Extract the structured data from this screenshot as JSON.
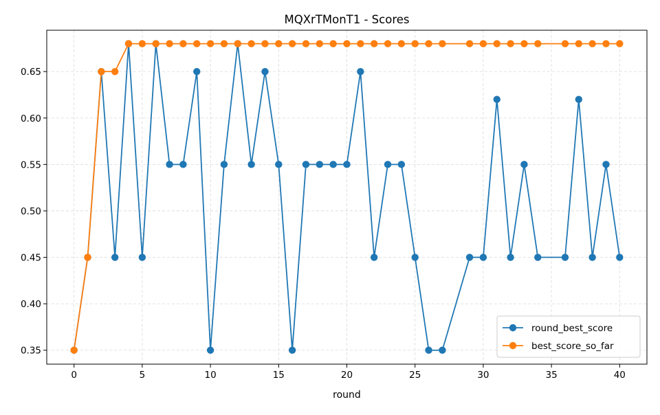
{
  "chart_data": {
    "type": "line",
    "title": "MQXrTMonT1 - Scores",
    "xlabel": "round",
    "ylabel": "",
    "xlim": [
      -2,
      42
    ],
    "ylim": [
      0.335,
      0.6945
    ],
    "x_ticks": [
      0,
      5,
      10,
      15,
      20,
      25,
      30,
      35,
      40
    ],
    "y_ticks": [
      0.35,
      0.4,
      0.45,
      0.5,
      0.55,
      0.6,
      0.65
    ],
    "y_tick_labels": [
      "0.35",
      "0.40",
      "0.45",
      "0.50",
      "0.55",
      "0.60",
      "0.65"
    ],
    "grid": true,
    "legend_position": "lower-right",
    "series": [
      {
        "name": "round_best_score",
        "color": "#1f77b4",
        "marker": "circle",
        "x": [
          0,
          1,
          2,
          3,
          4,
          5,
          6,
          7,
          8,
          9,
          10,
          11,
          12,
          13,
          14,
          15,
          16,
          17,
          18,
          19,
          20,
          21,
          22,
          23,
          24,
          25,
          26,
          27,
          29,
          30,
          31,
          32,
          33,
          34,
          36,
          37,
          38,
          39,
          40
        ],
        "values": [
          0.35,
          0.45,
          0.65,
          0.45,
          0.68,
          0.45,
          0.68,
          0.55,
          0.55,
          0.65,
          0.35,
          0.55,
          0.68,
          0.55,
          0.65,
          0.55,
          0.35,
          0.55,
          0.55,
          0.55,
          0.55,
          0.65,
          0.45,
          0.55,
          0.55,
          0.45,
          0.35,
          0.35,
          0.45,
          0.45,
          0.62,
          0.45,
          0.55,
          0.45,
          0.45,
          0.62,
          0.45,
          0.55,
          0.45
        ]
      },
      {
        "name": "best_score_so_far",
        "color": "#ff7f0e",
        "marker": "circle",
        "x": [
          0,
          1,
          2,
          3,
          4,
          5,
          6,
          7,
          8,
          9,
          10,
          11,
          12,
          13,
          14,
          15,
          16,
          17,
          18,
          19,
          20,
          21,
          22,
          23,
          24,
          25,
          26,
          27,
          29,
          30,
          31,
          32,
          33,
          34,
          36,
          37,
          38,
          39,
          40
        ],
        "values": [
          0.35,
          0.45,
          0.65,
          0.65,
          0.68,
          0.68,
          0.68,
          0.68,
          0.68,
          0.68,
          0.68,
          0.68,
          0.68,
          0.68,
          0.68,
          0.68,
          0.68,
          0.68,
          0.68,
          0.68,
          0.68,
          0.68,
          0.68,
          0.68,
          0.68,
          0.68,
          0.68,
          0.68,
          0.68,
          0.68,
          0.68,
          0.68,
          0.68,
          0.68,
          0.68,
          0.68,
          0.68,
          0.68,
          0.68
        ]
      }
    ]
  }
}
